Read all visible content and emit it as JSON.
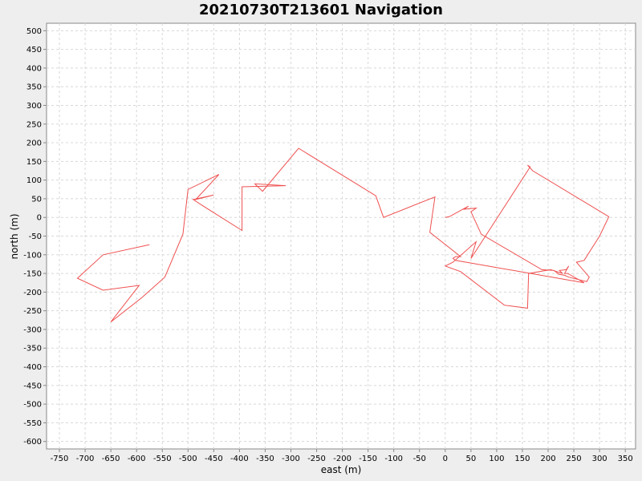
{
  "chart_data": {
    "type": "line",
    "title": "20210730T213601 Navigation",
    "xlabel": "east (m)",
    "ylabel": "north (m)",
    "xlim": [
      -775,
      370
    ],
    "ylim": [
      -620,
      520
    ],
    "xticks": [
      -750,
      -700,
      -650,
      -600,
      -550,
      -500,
      -450,
      -400,
      -350,
      -300,
      -250,
      -200,
      -150,
      -100,
      -50,
      0,
      50,
      100,
      150,
      200,
      250,
      300,
      350
    ],
    "yticks": [
      500,
      450,
      400,
      350,
      300,
      250,
      200,
      150,
      100,
      50,
      0,
      -50,
      -100,
      -150,
      -200,
      -250,
      -300,
      -350,
      -400,
      -450,
      -500,
      -550,
      -600
    ],
    "grid": true,
    "legend": "none",
    "series_color": "#ef5050",
    "series": [
      {
        "x": [
          0,
          8,
          45,
          37,
          60,
          50,
          70,
          188,
          212,
          220,
          232,
          240,
          275,
          280,
          255,
          270,
          300,
          318,
          170,
          160,
          165,
          50,
          60,
          15,
          0,
          30,
          115,
          160,
          162,
          205,
          228,
          222,
          235,
          240,
          232,
          238,
          270,
          20,
          15,
          20,
          30,
          -30,
          -20,
          -120,
          -135,
          -285,
          -355,
          -370,
          -310,
          -395,
          -395,
          -470,
          -490,
          -450,
          -485,
          -440,
          -500,
          -510,
          -545,
          -590,
          -650,
          -595,
          -665,
          -715,
          -665,
          -575
        ],
        "y": [
          0,
          2,
          30,
          22,
          25,
          15,
          -45,
          -140,
          -142,
          -152,
          -155,
          -160,
          -172,
          -160,
          -120,
          -115,
          -50,
          2,
          125,
          140,
          135,
          -110,
          -65,
          -120,
          -130,
          -145,
          -235,
          -243,
          -150,
          -140,
          -150,
          -142,
          -140,
          -130,
          -150,
          -150,
          -175,
          -115,
          -110,
          -105,
          -105,
          -40,
          55,
          0,
          58,
          185,
          70,
          90,
          85,
          82,
          -35,
          30,
          48,
          60,
          48,
          115,
          75,
          -45,
          -160,
          -215,
          -280,
          -182,
          -195,
          -163,
          -100,
          -73
        ]
      }
    ]
  }
}
